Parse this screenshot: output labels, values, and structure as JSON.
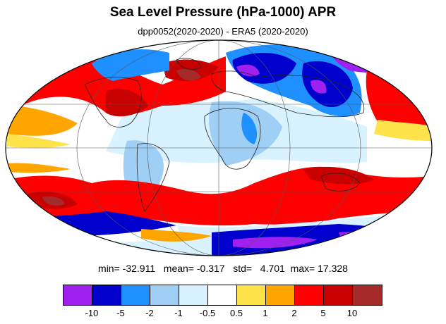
{
  "title": "Sea Level Pressure (hPa-1000) APR",
  "subtitle": "dpp0052(2020-2020) - ERA5 (2020-2020)",
  "stats": {
    "min_label": "min=",
    "min": "-32.911",
    "mean_label": "mean=",
    "mean": "-0.317",
    "std_label": "std=",
    "std": "4.701",
    "max_label": "max=",
    "max": "17.328"
  },
  "colorbar": {
    "colors": [
      "#a020f0",
      "#0000cd",
      "#1e90ff",
      "#a0cff5",
      "#d8f2ff",
      "#ffffff",
      "#ffe34a",
      "#ffa500",
      "#ff0000",
      "#c80000",
      "#a52a2a"
    ],
    "labels": [
      "-10",
      "-5",
      "-2",
      "-1",
      "-0.5",
      "0.5",
      "1",
      "2",
      "5",
      "10"
    ]
  },
  "map": {
    "projection": "Mollweide",
    "background_color": "#ffffff"
  }
}
